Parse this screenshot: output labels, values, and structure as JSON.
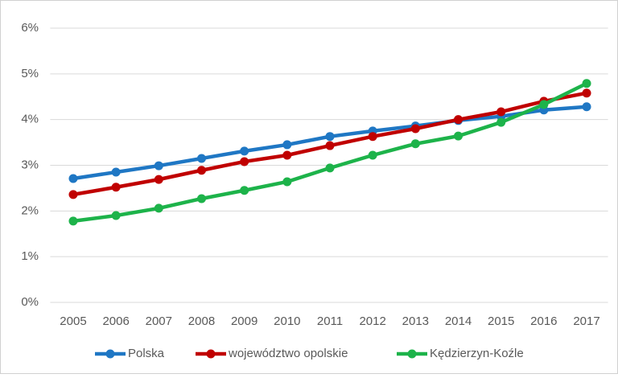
{
  "chart_data": {
    "type": "line",
    "categories": [
      "2005",
      "2006",
      "2007",
      "2008",
      "2009",
      "2010",
      "2011",
      "2012",
      "2013",
      "2014",
      "2015",
      "2016",
      "2017"
    ],
    "series": [
      {
        "name": "Polska",
        "color": "#1f77c4",
        "values": [
          2.71,
          2.85,
          2.99,
          3.15,
          3.31,
          3.45,
          3.63,
          3.75,
          3.86,
          3.98,
          4.07,
          4.21,
          4.28
        ]
      },
      {
        "name": "województwo opolskie",
        "color": "#c00000",
        "values": [
          2.36,
          2.52,
          2.69,
          2.89,
          3.08,
          3.22,
          3.43,
          3.63,
          3.8,
          4.0,
          4.17,
          4.4,
          4.58
        ]
      },
      {
        "name": "Kędzierzyn-Koźle",
        "color": "#1db34a",
        "values": [
          1.78,
          1.9,
          2.06,
          2.27,
          2.45,
          2.64,
          2.94,
          3.22,
          3.47,
          3.64,
          3.94,
          4.33,
          4.79
        ]
      }
    ],
    "ylim": [
      0,
      6
    ],
    "yticks": [
      {
        "value": 0,
        "label": "0%"
      },
      {
        "value": 1,
        "label": "1%"
      },
      {
        "value": 2,
        "label": "2%"
      },
      {
        "value": 3,
        "label": "3%"
      },
      {
        "value": 4,
        "label": "4%"
      },
      {
        "value": 5,
        "label": "5%"
      },
      {
        "value": 6,
        "label": "6%"
      }
    ],
    "grid": true,
    "legend": "bottom"
  }
}
